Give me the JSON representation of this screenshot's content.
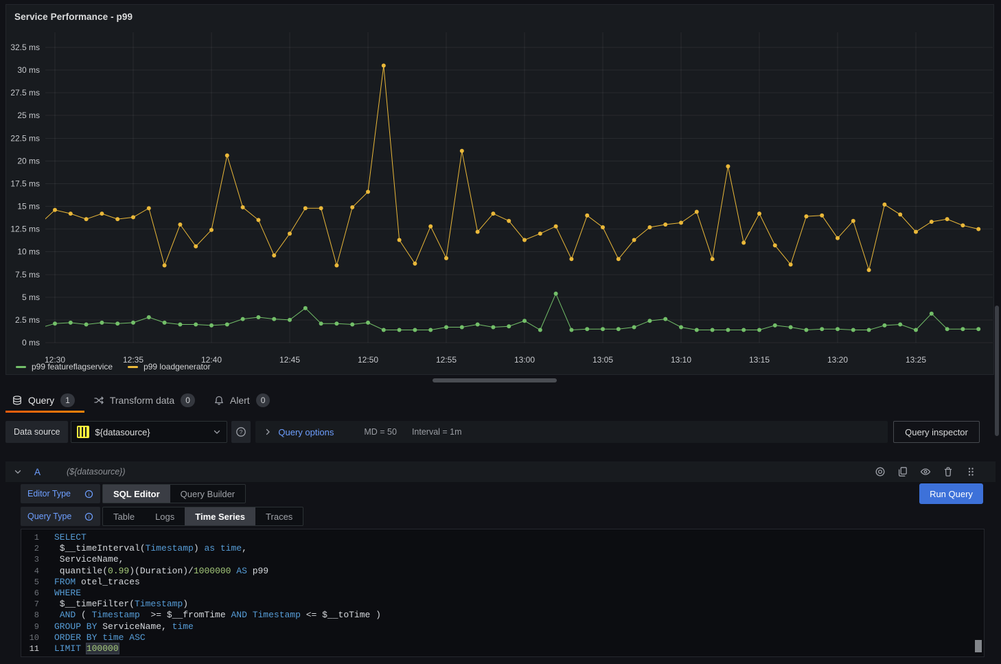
{
  "panel": {
    "title": "Service Performance - p99"
  },
  "chart_data": {
    "type": "line",
    "title": "Service Performance - p99",
    "xlabel": "",
    "ylabel": "",
    "ylim": [
      0,
      34
    ],
    "grid": true,
    "legend_position": "bottom-left",
    "yticks": [
      "0 ms",
      "2.5 ms",
      "5 ms",
      "7.5 ms",
      "10 ms",
      "12.5 ms",
      "15 ms",
      "17.5 ms",
      "20 ms",
      "22.5 ms",
      "25 ms",
      "27.5 ms",
      "30 ms",
      "32.5 ms"
    ],
    "xticks": [
      "12:30",
      "12:35",
      "12:40",
      "12:45",
      "12:50",
      "12:55",
      "13:00",
      "13:05",
      "13:10",
      "13:15",
      "13:20",
      "13:25"
    ],
    "x_times": [
      "12:29",
      "12:30",
      "12:31",
      "12:32",
      "12:33",
      "12:34",
      "12:35",
      "12:36",
      "12:37",
      "12:38",
      "12:39",
      "12:40",
      "12:41",
      "12:42",
      "12:43",
      "12:44",
      "12:45",
      "12:46",
      "12:47",
      "12:48",
      "12:49",
      "12:50",
      "12:51",
      "12:52",
      "12:53",
      "12:54",
      "12:55",
      "12:56",
      "12:57",
      "12:58",
      "12:59",
      "13:00",
      "13:01",
      "13:02",
      "13:03",
      "13:04",
      "13:05",
      "13:06",
      "13:07",
      "13:08",
      "13:09",
      "13:10",
      "13:11",
      "13:12",
      "13:13",
      "13:14",
      "13:15",
      "13:16",
      "13:17",
      "13:18",
      "13:19",
      "13:20",
      "13:21",
      "13:22",
      "13:23",
      "13:24",
      "13:25",
      "13:26",
      "13:27",
      "13:28",
      "13:29"
    ],
    "series": [
      {
        "name": "p99 featureflagservice",
        "color": "#73bf69",
        "values": [
          1.6,
          2.1,
          2.2,
          2.0,
          2.2,
          2.1,
          2.2,
          2.8,
          2.2,
          2.0,
          2.0,
          1.9,
          2.0,
          2.6,
          2.8,
          2.6,
          2.5,
          3.8,
          2.1,
          2.1,
          2.0,
          2.2,
          1.4,
          1.4,
          1.4,
          1.4,
          1.7,
          1.7,
          2.0,
          1.7,
          1.8,
          2.4,
          1.4,
          5.4,
          1.4,
          1.5,
          1.5,
          1.5,
          1.7,
          2.4,
          2.6,
          1.7,
          1.4,
          1.4,
          1.4,
          1.4,
          1.4,
          1.9,
          1.7,
          1.4,
          1.5,
          1.5,
          1.4,
          1.4,
          1.9,
          2.0,
          1.4,
          3.2,
          1.5,
          1.5,
          1.5
        ]
      },
      {
        "name": "p99 loadgenerator",
        "color": "#eab839",
        "values": [
          13.0,
          14.6,
          14.2,
          13.6,
          14.2,
          13.6,
          13.8,
          14.8,
          8.5,
          13.0,
          10.6,
          12.4,
          20.6,
          14.9,
          13.5,
          9.6,
          12.0,
          14.8,
          14.8,
          8.5,
          14.9,
          16.6,
          30.5,
          11.3,
          8.7,
          12.8,
          9.3,
          21.1,
          12.2,
          14.2,
          13.4,
          11.3,
          12.0,
          12.8,
          9.2,
          14.0,
          12.7,
          9.2,
          11.3,
          12.7,
          13.0,
          13.2,
          14.4,
          9.2,
          19.4,
          11.0,
          14.2,
          10.7,
          8.6,
          13.9,
          14.0,
          11.5,
          13.4,
          8.0,
          15.2,
          14.1,
          12.2,
          13.3,
          13.6,
          12.9,
          12.5
        ]
      }
    ]
  },
  "tabs": [
    {
      "label": "Query",
      "count": "1",
      "icon": "database-icon",
      "active": true
    },
    {
      "label": "Transform data",
      "count": "0",
      "icon": "transform-icon",
      "active": false
    },
    {
      "label": "Alert",
      "count": "0",
      "icon": "bell-icon",
      "active": false
    }
  ],
  "datasource_bar": {
    "label": "Data source",
    "value": "${datasource}",
    "query_options_label": "Query options",
    "max_data_points": "MD = 50",
    "interval": "Interval = 1m",
    "query_inspector_label": "Query inspector"
  },
  "query_row": {
    "ref_id": "A",
    "datasource_hint": "(${datasource})"
  },
  "editor": {
    "editor_type_label": "Editor Type",
    "editor_type_options": [
      "SQL Editor",
      "Query Builder"
    ],
    "editor_type_active": "SQL Editor",
    "query_type_label": "Query Type",
    "query_type_options": [
      "Table",
      "Logs",
      "Time Series",
      "Traces"
    ],
    "query_type_active": "Time Series",
    "run_query_label": "Run Query"
  },
  "sql": {
    "lines": [
      {
        "num": "1",
        "tokens": [
          [
            "SELECT",
            "kw"
          ]
        ]
      },
      {
        "num": "2",
        "tokens": [
          [
            " $__timeInterval(",
            "pl"
          ],
          [
            "Timestamp",
            "kw"
          ],
          [
            ") ",
            "pl"
          ],
          [
            "as",
            "kw"
          ],
          [
            " ",
            "pl"
          ],
          [
            "time",
            "kw"
          ],
          [
            ",",
            "pl"
          ]
        ]
      },
      {
        "num": "3",
        "tokens": [
          [
            " ServiceName,",
            "pl"
          ]
        ]
      },
      {
        "num": "4",
        "tokens": [
          [
            " quantile(",
            "pl"
          ],
          [
            "0.99",
            "num"
          ],
          [
            ")(Duration)/",
            "pl"
          ],
          [
            "1000000",
            "num"
          ],
          [
            " ",
            "pl"
          ],
          [
            "AS",
            "kw"
          ],
          [
            " p99",
            "pl"
          ]
        ]
      },
      {
        "num": "5",
        "tokens": [
          [
            "FROM",
            "kw"
          ],
          [
            " otel_traces",
            "pl"
          ]
        ]
      },
      {
        "num": "6",
        "tokens": [
          [
            "WHERE",
            "kw"
          ]
        ]
      },
      {
        "num": "7",
        "tokens": [
          [
            " $__timeFilter(",
            "pl"
          ],
          [
            "Timestamp",
            "kw"
          ],
          [
            ")",
            "pl"
          ]
        ]
      },
      {
        "num": "8",
        "tokens": [
          [
            " ",
            "pl"
          ],
          [
            "AND",
            "kw"
          ],
          [
            " ( ",
            "pl"
          ],
          [
            "Timestamp",
            "kw"
          ],
          [
            "  >= $__fromTime ",
            "pl"
          ],
          [
            "AND",
            "kw"
          ],
          [
            " ",
            "pl"
          ],
          [
            "Timestamp",
            "kw"
          ],
          [
            " <= $__toTime )",
            "pl"
          ]
        ]
      },
      {
        "num": "9",
        "tokens": [
          [
            "GROUP BY",
            "kw"
          ],
          [
            " ServiceName, ",
            "pl"
          ],
          [
            "time",
            "kw"
          ]
        ]
      },
      {
        "num": "10",
        "tokens": [
          [
            "ORDER BY",
            "kw"
          ],
          [
            " ",
            "pl"
          ],
          [
            "time",
            "kw"
          ],
          [
            " ",
            "pl"
          ],
          [
            "ASC",
            "kw"
          ]
        ]
      },
      {
        "num": "11",
        "active": true,
        "tokens": [
          [
            "LIMIT",
            "kw"
          ],
          [
            " ",
            "pl"
          ],
          [
            "100000",
            "numhl"
          ]
        ]
      }
    ]
  },
  "icons": {
    "query_tab": "database-icon",
    "transform_tab": "transform-icon",
    "alert_tab": "bell-icon",
    "datasource_logo": "clickhouse-logo-icon",
    "datasource_chevron": "chevron-down-icon",
    "help": "help-circle-icon",
    "query_options_chevron": "chevron-right-icon",
    "query_row_chevron": "chevron-down-icon",
    "row_actions": [
      "record-icon",
      "copy-icon",
      "eye-icon",
      "trash-icon",
      "drag-handle-icon"
    ],
    "option_info": "info-circle-icon"
  },
  "colors": {
    "page_bg": "#111217",
    "panel_bg": "#181b1f",
    "accent_blue": "#6e9fff",
    "button_primary": "#3d71d9",
    "tab_active_underline": "#f55f0d",
    "series_green": "#73bf69",
    "series_yellow": "#eab839",
    "keyword_blue": "#569cd6",
    "number_green": "#a5c97a",
    "clickhouse_yellow": "#fdee3c"
  }
}
